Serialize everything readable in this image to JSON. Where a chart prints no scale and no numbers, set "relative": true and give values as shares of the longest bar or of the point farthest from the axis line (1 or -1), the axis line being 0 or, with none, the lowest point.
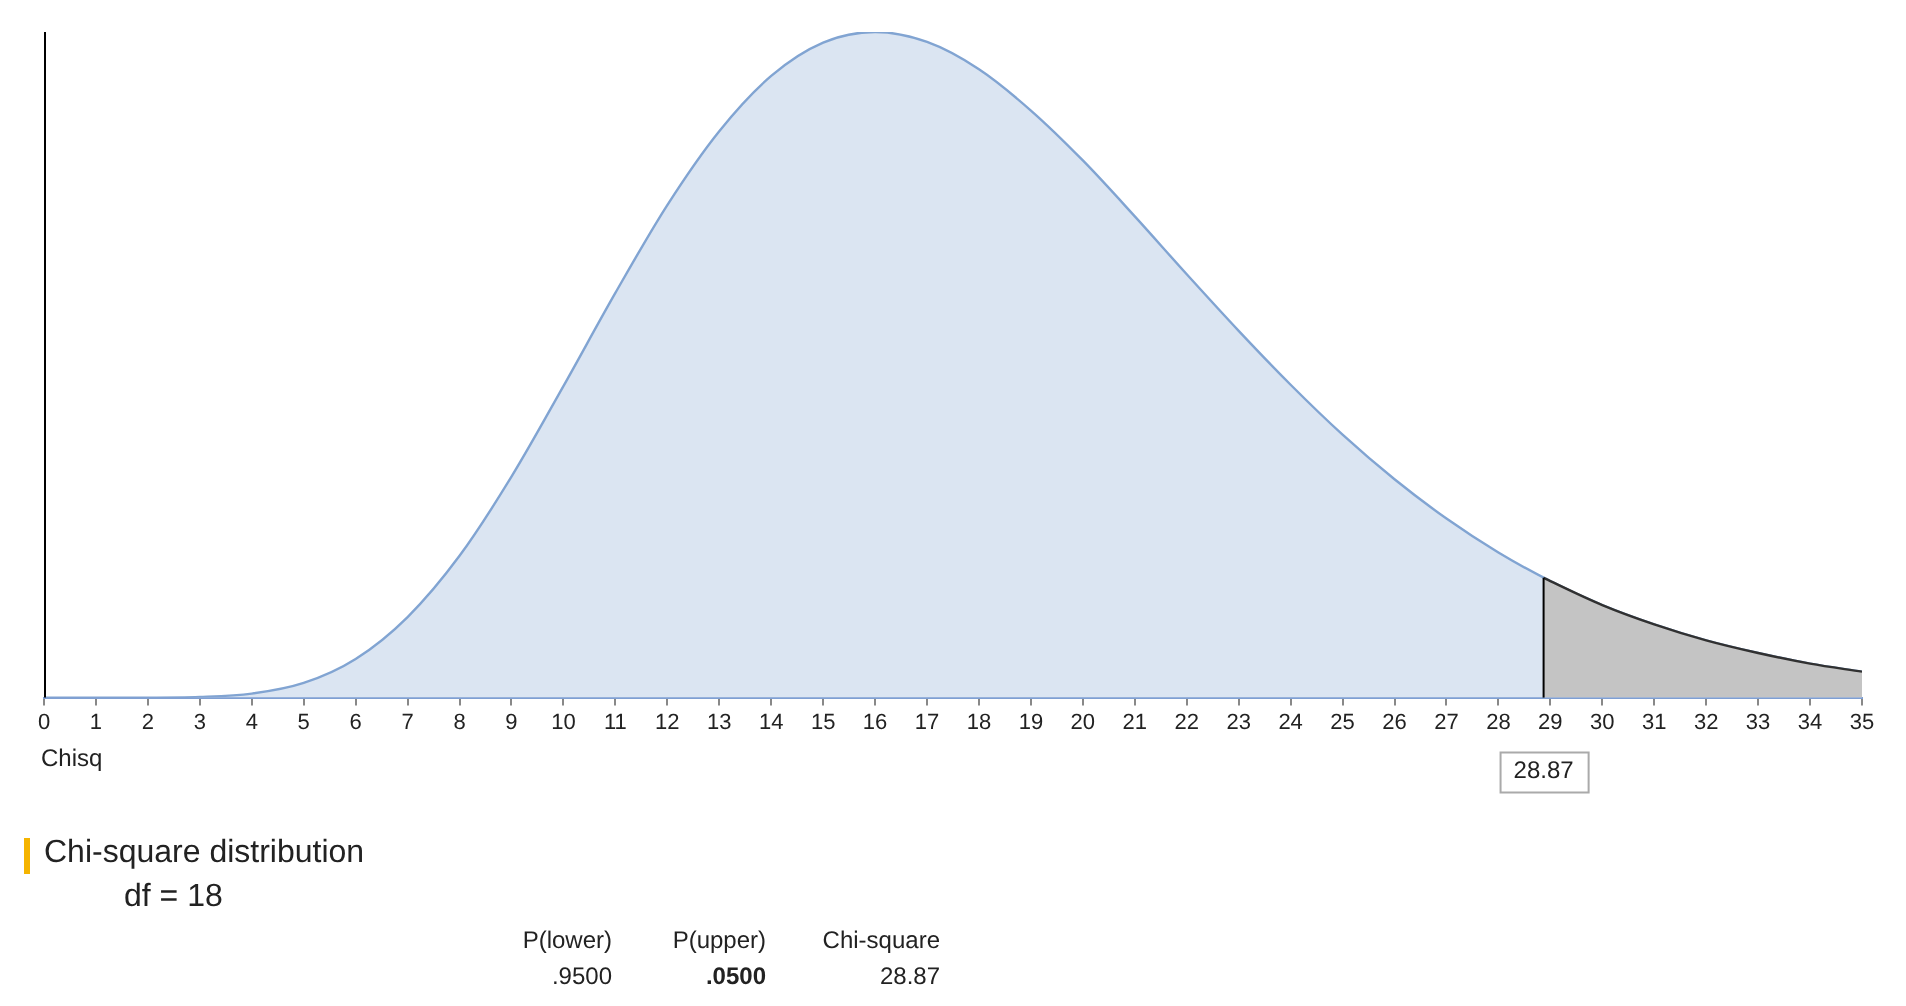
{
  "chart_data": {
    "type": "area",
    "title": "Chi-square distribution",
    "subtitle": "df =  18",
    "xlabel": "Chisq",
    "relative": true,
    "x": [
      0,
      1,
      2,
      3,
      4,
      5,
      6,
      7,
      8,
      9,
      10,
      11,
      12,
      13,
      14,
      15,
      16,
      17,
      18,
      19,
      20,
      21,
      22,
      23,
      24,
      25,
      26,
      27,
      28,
      29,
      30,
      31,
      32,
      33,
      34,
      35
    ],
    "series": [
      {
        "color": "#dbe5f2",
        "values": [
          0,
          0,
          0,
          0.001,
          0.006,
          0.022,
          0.058,
          0.121,
          0.213,
          0.332,
          0.468,
          0.608,
          0.74,
          0.851,
          0.934,
          0.984,
          1,
          0.985,
          0.944,
          0.882,
          0.807,
          0.723,
          0.636,
          0.551,
          0.47,
          0.395,
          0.328,
          0.269,
          0.218,
          0.175,
          0.139,
          0.11,
          0.086,
          0.067,
          0.051,
          0.039
        ]
      },
      {
        "color": "#c4c4c4",
        "x": [
          28.87,
          29,
          30,
          31,
          32,
          33,
          34,
          35
        ],
        "values": [
          0.18,
          0.175,
          0.139,
          0.11,
          0.086,
          0.067,
          0.051,
          0.039
        ]
      }
    ],
    "xlim": [
      0,
      35
    ],
    "xticks": [
      0,
      1,
      2,
      3,
      4,
      5,
      6,
      7,
      8,
      9,
      10,
      11,
      12,
      13,
      14,
      15,
      16,
      17,
      18,
      19,
      20,
      21,
      22,
      23,
      24,
      25,
      26,
      27,
      28,
      29,
      30,
      31,
      32,
      33,
      34,
      35
    ],
    "grid": false,
    "legend": false,
    "marker": "none",
    "ref_lines": [
      {
        "axis": "x",
        "value": 28.87,
        "label": "28.87",
        "color": "#000000"
      }
    ],
    "annotations": [
      "P(lower)",
      "P(upper)",
      "Chi-square",
      ".9500",
      ".0500",
      "28.87"
    ]
  }
}
